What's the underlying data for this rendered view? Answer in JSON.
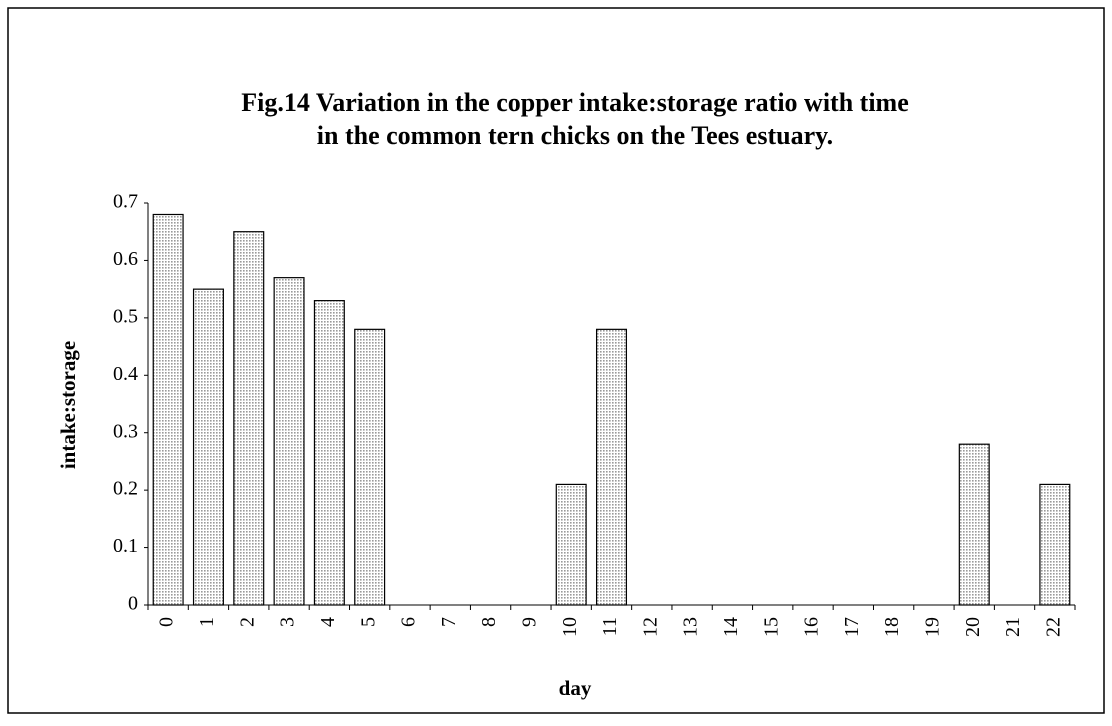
{
  "chart_data": {
    "type": "bar",
    "title": [
      "Fig.14  Variation in the copper intake:storage ratio with time",
      "in the common tern chicks on the Tees estuary."
    ],
    "x_label": "day",
    "y_label": "intake:storage",
    "categories": [
      "0",
      "1",
      "2",
      "3",
      "4",
      "5",
      "6",
      "7",
      "8",
      "9",
      "10",
      "11",
      "12",
      "13",
      "14",
      "15",
      "16",
      "17",
      "18",
      "19",
      "20",
      "21",
      "22"
    ],
    "values": [
      0.68,
      0.55,
      0.65,
      0.57,
      0.53,
      0.48,
      null,
      null,
      null,
      null,
      0.21,
      0.48,
      null,
      null,
      null,
      null,
      null,
      null,
      null,
      null,
      0.28,
      null,
      0.21
    ],
    "color": "#9a9a9a",
    "ylim": [
      0,
      0.7
    ],
    "yticks": [
      0,
      0.1,
      0.2,
      0.3,
      0.4,
      0.5,
      0.6,
      0.7
    ],
    "grid": false
  }
}
